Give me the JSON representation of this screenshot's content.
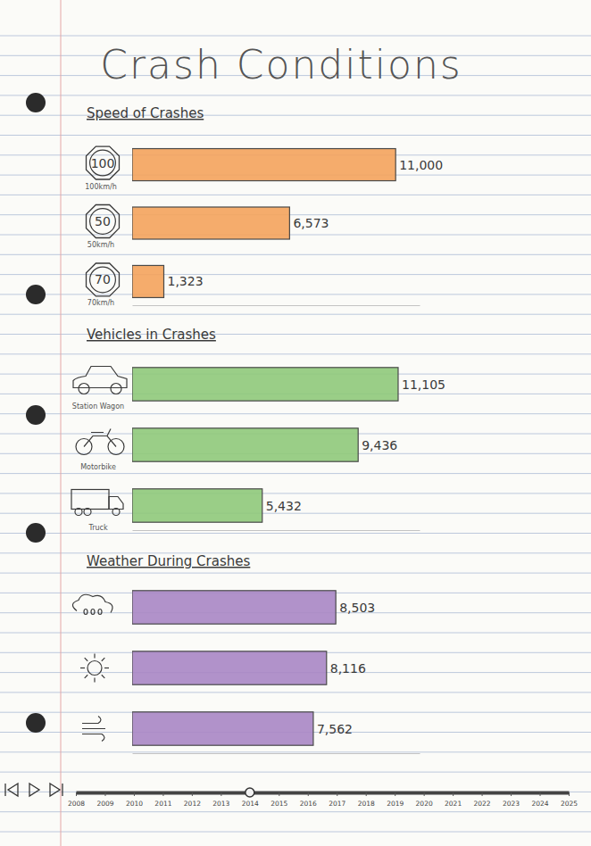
{
  "title": "Crash Conditions",
  "chart_data": [
    {
      "type": "bar",
      "orientation": "horizontal",
      "title": "Speed of Crashes",
      "categories": [
        "100km/h",
        "50km/h",
        "70km/h"
      ],
      "annotations": [
        "100",
        "50",
        "70"
      ],
      "values": [
        11000,
        6573,
        1323
      ],
      "value_labels": [
        "11,000",
        "6,573",
        "1,323"
      ],
      "data_labels": true,
      "tick_labels": false,
      "color": "#f4a35c",
      "xlim": [
        0,
        12000
      ]
    },
    {
      "type": "bar",
      "orientation": "horizontal",
      "title": "Vehicles in Crashes",
      "categories": [
        "Station Wagon",
        "Motorbike",
        "Truck"
      ],
      "values": [
        11105,
        9436,
        5432
      ],
      "value_labels": [
        "11,105",
        "9,436",
        "5,432"
      ],
      "data_labels": true,
      "tick_labels": false,
      "color": "#8fc97a",
      "xlim": [
        0,
        12000
      ]
    },
    {
      "type": "bar",
      "orientation": "horizontal",
      "title": "Weather During Crashes",
      "categories": [
        null,
        null,
        null
      ],
      "values": [
        8503,
        8116,
        7562
      ],
      "value_labels": [
        "8,503",
        "8,116",
        "7,562"
      ],
      "data_labels": true,
      "tick_labels": false,
      "color": "#a886c4",
      "xlim": [
        0,
        12000
      ]
    }
  ],
  "timeline": {
    "xlim": [
      2008,
      2025
    ],
    "xticks": [
      2008,
      2009,
      2010,
      2011,
      2012,
      2013,
      2014,
      2015,
      2016,
      2017,
      2018,
      2019,
      2020,
      2021,
      2022,
      2023,
      2024,
      2025
    ],
    "value": 2014
  }
}
